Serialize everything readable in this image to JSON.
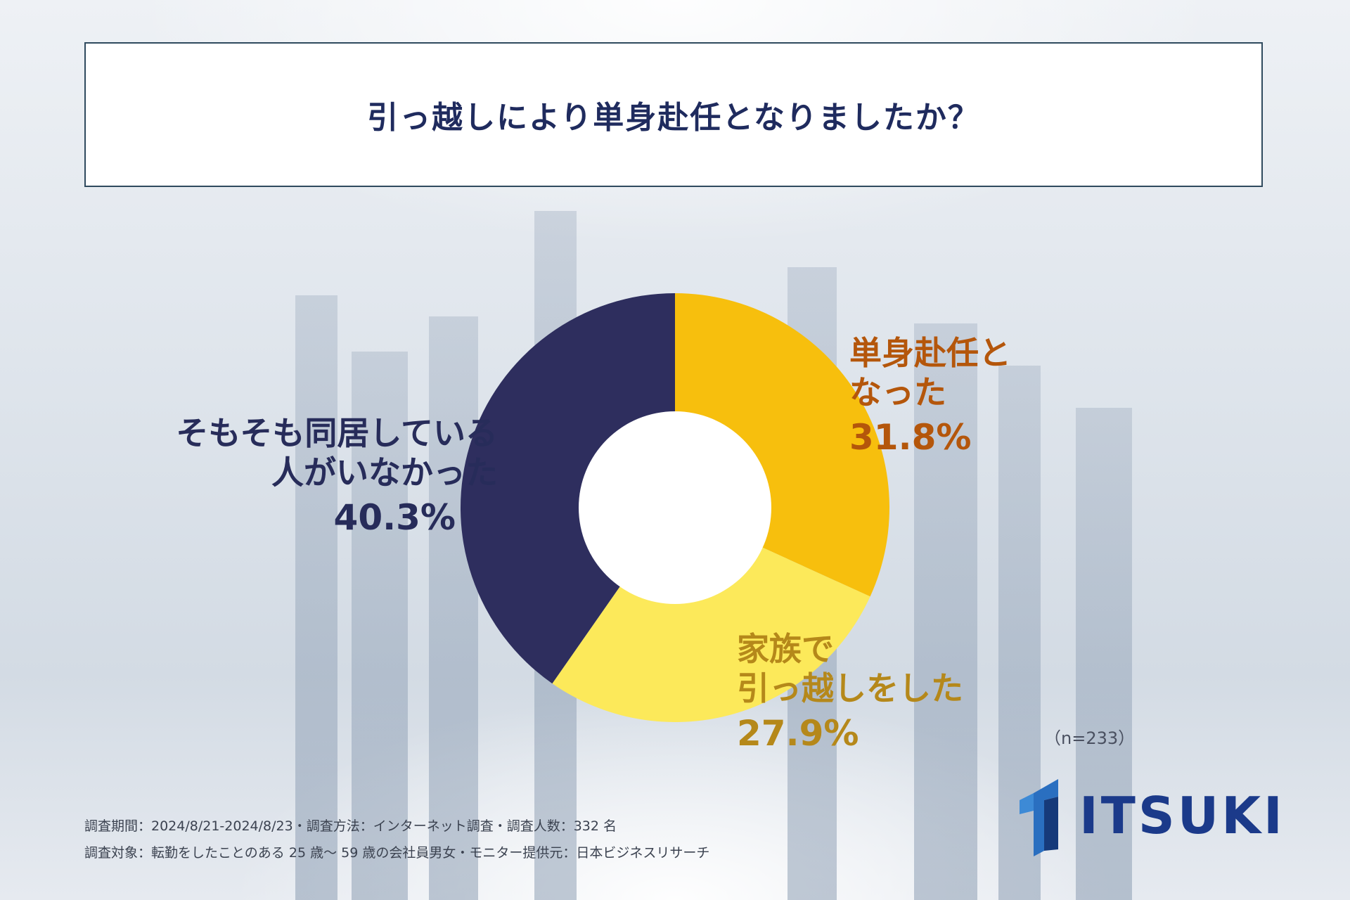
{
  "title": "引っ越しにより単身赴任となりましたか？",
  "chart_data": {
    "type": "pie",
    "donut": true,
    "categories": [
      "単身赴任となった",
      "家族で引っ越しをした",
      "そもそも同居している人がいなかった"
    ],
    "values": [
      31.8,
      27.9,
      40.3
    ],
    "colors": [
      "#f7bf0d",
      "#fce95a",
      "#2e2e5e"
    ],
    "labels": [
      {
        "name_line1": "単身赴任と",
        "name_line2": "なった",
        "value": "31.8%",
        "color": "#b4560b"
      },
      {
        "name_line1": "家族で",
        "name_line2": "引っ越しをした",
        "value": "27.9%",
        "color": "#b5881a"
      },
      {
        "name_line1": "そもそも同居している",
        "name_line2": "人がいなかった",
        "value": "40.3%",
        "color": "#272c5a"
      }
    ],
    "sample_size": "（n=233）"
  },
  "notes": {
    "line1": "調査期間：2024/8/21-2024/8/23・調査方法：インターネット調査・調査人数：332 名",
    "line2": "調査対象：転勤をしたことのある 25 歳〜 59 歳の会社員男女・モニター提供元：日本ビジネスリサーチ"
  },
  "logo": {
    "text": "ITSUKI",
    "color": "#1b3a8a"
  }
}
